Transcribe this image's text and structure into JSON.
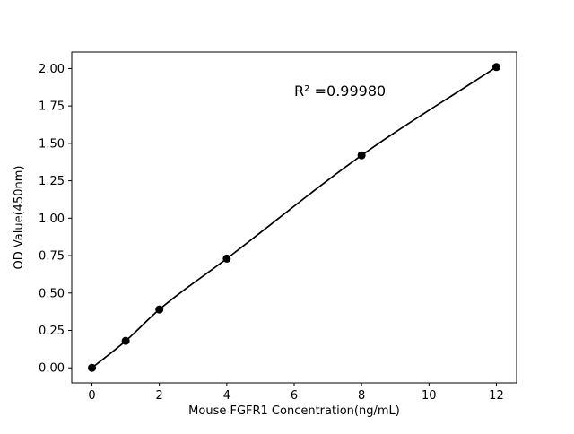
{
  "figure": {
    "background": "#ffffff"
  },
  "chart_data": {
    "type": "line",
    "x": [
      0,
      1,
      2,
      4,
      8,
      12
    ],
    "y": [
      0.0,
      0.18,
      0.39,
      0.73,
      1.42,
      2.01
    ],
    "title": "",
    "xlabel": "Mouse FGFR1 Concentration(ng/mL)",
    "ylabel": "OD Value(450nm)",
    "annotation": "R² =0.99980",
    "xticks": [
      0,
      2,
      4,
      6,
      8,
      10,
      12
    ],
    "yticks": [
      0.0,
      0.25,
      0.5,
      0.75,
      1.0,
      1.25,
      1.5,
      1.75,
      2.0
    ],
    "xlim": [
      -0.6,
      12.6
    ],
    "ylim": [
      -0.1005,
      2.1105
    ],
    "grid": false,
    "legend": null,
    "marker": "circle",
    "line_color": "#000000",
    "marker_color": "#000000",
    "axis_color": "#000000",
    "text_color": "#000000"
  }
}
